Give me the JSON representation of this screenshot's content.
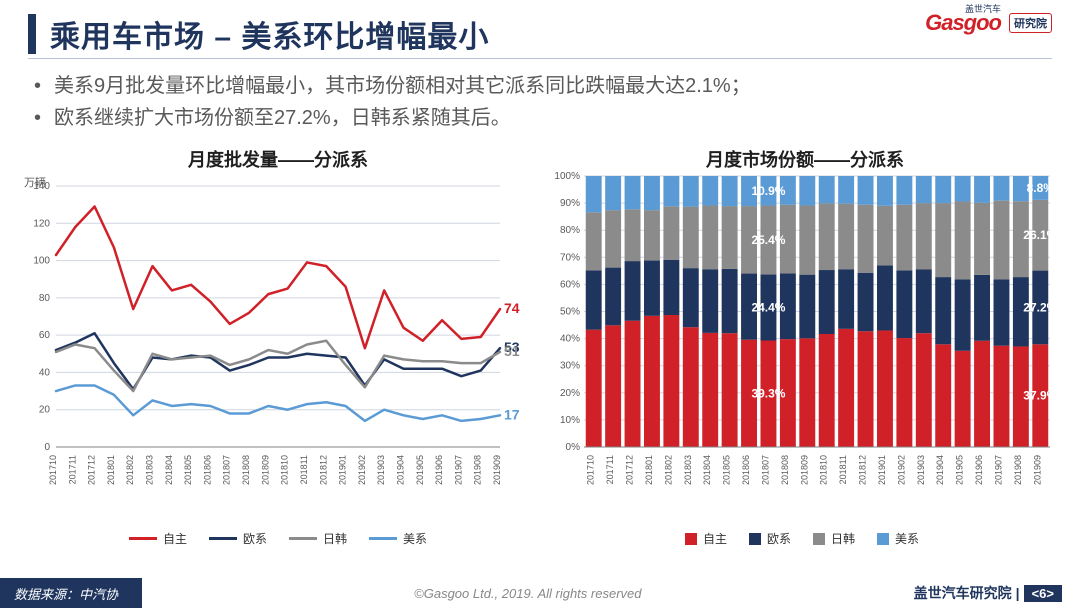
{
  "header": {
    "title": "乘用车市场 – 美系环比增幅最小",
    "logo_text": "Gasgoo",
    "logo_badge": "研究院",
    "logo_cn": "盖世汽车"
  },
  "bullets": [
    "美系9月批发量环比增幅最小，其市场份额相对其它派系同比跌幅最大达2.1%；",
    "欧系继续扩大市场份额至27.2%，日韩系紧随其后。"
  ],
  "legend_names": [
    "自主",
    "欧系",
    "日韩",
    "美系"
  ],
  "colors": {
    "red": "#d02028",
    "navy": "#1f355e",
    "grey": "#8b8b8b",
    "blue": "#5b9bd5",
    "grid": "#d0d5e0",
    "axis": "#808080",
    "bg": "#ffffff"
  },
  "line_chart": {
    "title": "月度批发量——分派系",
    "y_unit": "万辆",
    "ylim": [
      0,
      140
    ],
    "ytick_step": 20,
    "categories": [
      "201710",
      "201711",
      "201712",
      "201801",
      "201802",
      "201803",
      "201804",
      "201805",
      "201806",
      "201807",
      "201808",
      "201809",
      "201810",
      "201811",
      "201812",
      "201901",
      "201902",
      "201903",
      "201904",
      "201905",
      "201906",
      "201907",
      "201908",
      "201909"
    ],
    "series": [
      {
        "name": "自主",
        "color": "#d02028",
        "width": 2.5,
        "values": [
          103,
          118,
          129,
          107,
          74,
          97,
          84,
          87,
          78,
          66,
          72,
          82,
          85,
          99,
          97,
          86,
          53,
          84,
          64,
          57,
          68,
          58,
          59,
          74
        ],
        "end_label": "74"
      },
      {
        "name": "欧系",
        "color": "#1f355e",
        "width": 2.5,
        "values": [
          52,
          56,
          61,
          45,
          31,
          48,
          47,
          49,
          48,
          41,
          44,
          48,
          48,
          50,
          49,
          48,
          33,
          47,
          42,
          42,
          42,
          38,
          41,
          53
        ],
        "end_label": "53"
      },
      {
        "name": "日韩",
        "color": "#8b8b8b",
        "width": 2.5,
        "values": [
          51,
          55,
          53,
          41,
          30,
          50,
          47,
          48,
          49,
          44,
          47,
          52,
          50,
          55,
          57,
          44,
          32,
          49,
          47,
          46,
          46,
          45,
          45,
          51
        ],
        "end_label": "51"
      },
      {
        "name": "美系",
        "color": "#5b9bd5",
        "width": 2.5,
        "values": [
          30,
          33,
          33,
          28,
          17,
          25,
          22,
          23,
          22,
          18,
          18,
          22,
          20,
          23,
          24,
          22,
          14,
          20,
          17,
          15,
          17,
          14,
          15,
          17
        ],
        "end_label": "17"
      }
    ]
  },
  "bar_chart": {
    "title": "月度市场份额——分派系",
    "ylim": [
      0,
      100
    ],
    "ytick_step": 10,
    "categories": [
      "201710",
      "201711",
      "201712",
      "201801",
      "201802",
      "201803",
      "201804",
      "201805",
      "201806",
      "201807",
      "201808",
      "201809",
      "201810",
      "201811",
      "201812",
      "201901",
      "201902",
      "201903",
      "201904",
      "201905",
      "201906",
      "201907",
      "201908",
      "201909"
    ],
    "stacks": [
      {
        "name": "自主",
        "color": "#d02028",
        "values": [
          43.3,
          44.9,
          46.6,
          48.4,
          48.7,
          44.2,
          42.1,
          42.0,
          39.6,
          39.3,
          39.8,
          40.1,
          41.7,
          43.6,
          42.7,
          43.0,
          40.2,
          42.0,
          37.9,
          35.5,
          39.2,
          37.4,
          37.1,
          37.9
        ]
      },
      {
        "name": "欧系",
        "color": "#1f355e",
        "values": [
          21.9,
          21.3,
          22.0,
          20.4,
          20.4,
          21.8,
          23.5,
          23.7,
          24.4,
          24.4,
          24.3,
          23.5,
          23.6,
          22.0,
          21.6,
          24.0,
          25.0,
          23.5,
          24.8,
          26.4,
          24.3,
          24.5,
          25.6,
          27.2
        ]
      },
      {
        "name": "日韩",
        "color": "#8b8b8b",
        "values": [
          21.4,
          21.2,
          19.1,
          18.6,
          19.7,
          22.7,
          23.5,
          23.2,
          24.9,
          25.4,
          25.3,
          25.5,
          24.6,
          24.2,
          25.1,
          22.0,
          24.2,
          24.5,
          27.3,
          28.7,
          26.6,
          29.0,
          28.0,
          26.1
        ]
      },
      {
        "name": "美系",
        "color": "#5b9bd5",
        "values": [
          13.4,
          12.6,
          12.3,
          12.6,
          11.2,
          11.3,
          10.9,
          11.1,
          11.1,
          10.9,
          10.6,
          10.9,
          10.1,
          10.2,
          10.6,
          11.0,
          10.6,
          10.0,
          10.0,
          9.4,
          9.9,
          9.1,
          9.3,
          8.8
        ]
      }
    ],
    "callouts": [
      {
        "col": 9,
        "stack": 0,
        "text": "39.3%"
      },
      {
        "col": 9,
        "stack": 1,
        "text": "24.4%"
      },
      {
        "col": 9,
        "stack": 2,
        "text": "25.4%"
      },
      {
        "col": 9,
        "stack": 3,
        "text": "10.9%"
      },
      {
        "col": 23,
        "stack": 0,
        "text": "37.9%"
      },
      {
        "col": 23,
        "stack": 1,
        "text": "27.2%"
      },
      {
        "col": 23,
        "stack": 2,
        "text": "26.1%"
      },
      {
        "col": 23,
        "stack": 3,
        "text": "8.8%"
      }
    ]
  },
  "footer": {
    "source": "数据来源：中汽协",
    "copy": "©Gasgoo Ltd., 2019. All rights reserved",
    "page_label": "盖世汽车研究院",
    "page_num": "6"
  }
}
